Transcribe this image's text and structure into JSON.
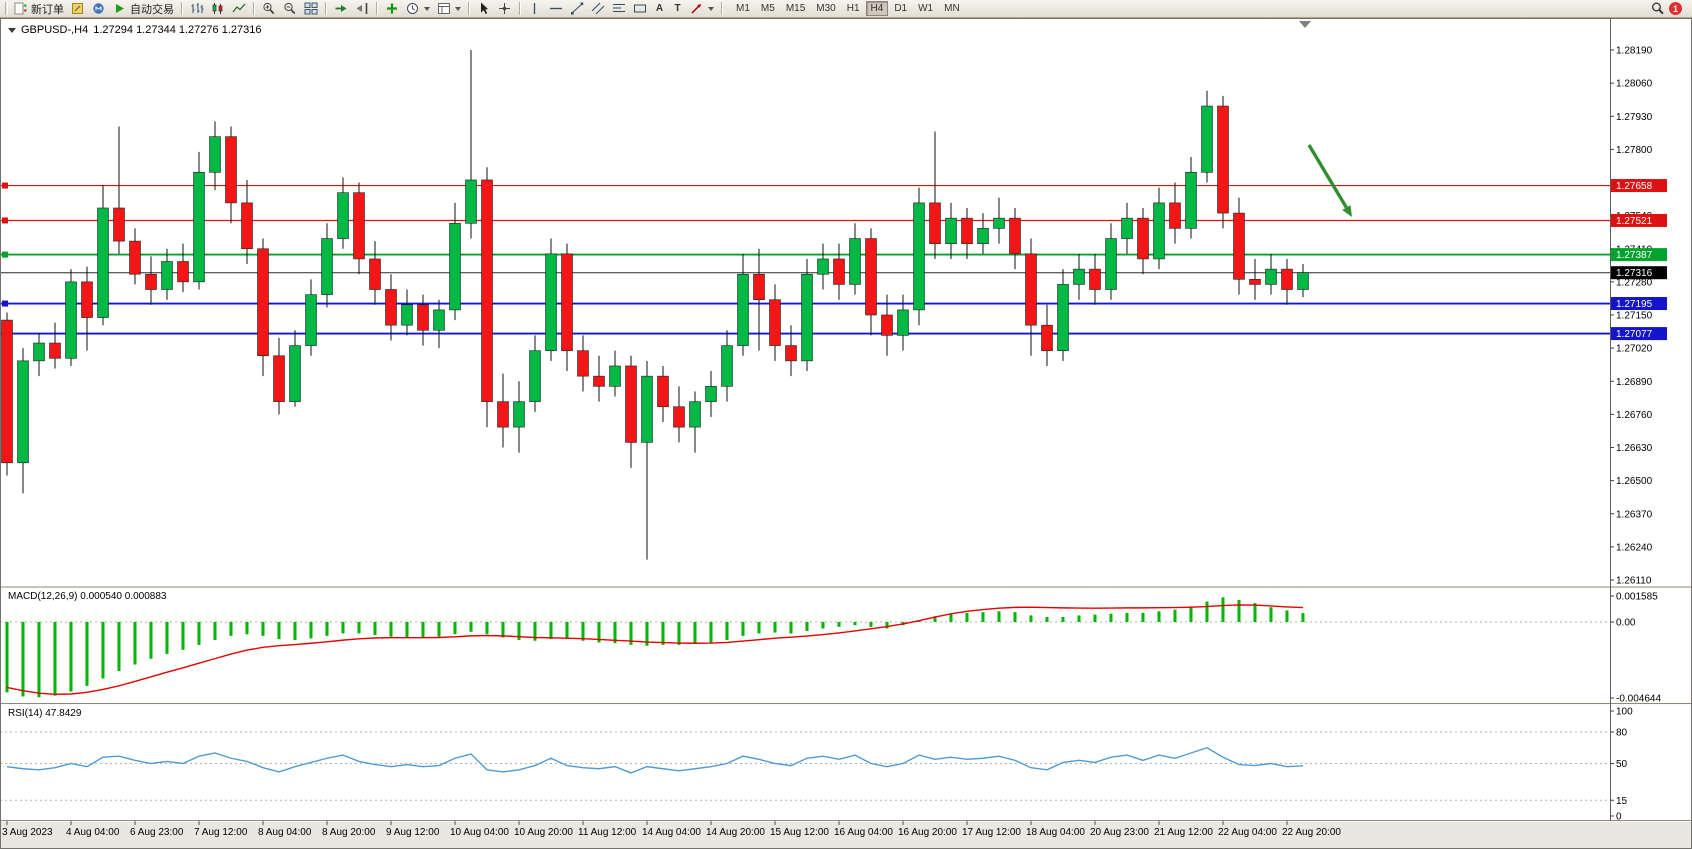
{
  "toolbar": {
    "new_order_label": "新订单",
    "autotrading_label": "自动交易",
    "timeframes": [
      "M1",
      "M5",
      "M15",
      "M30",
      "H1",
      "H4",
      "D1",
      "W1",
      "MN"
    ],
    "active_timeframe": "H4",
    "glyphs": {
      "text_tool": "A",
      "label_tool": "T"
    },
    "notification_count": "1"
  },
  "chart": {
    "symbol_period": "GBPUSD-,H4",
    "ohlc": "1.27294 1.27344 1.27276 1.27316"
  },
  "indicators": {
    "macd_label": "MACD(12,26,9) 0.000540 0.000883",
    "rsi_label": "RSI(14) 47.8429"
  },
  "colors": {
    "bull": "#00b846",
    "bear": "#f21616",
    "wick": "#111111",
    "macd_hist": "#00b400",
    "macd_signal": "#e80000",
    "rsi": "#4f9bd5",
    "hline_red": "#dd1111",
    "hline_green": "#00a32e",
    "hline_blue": "#1414cc",
    "current_line": "#2b2b2b",
    "arrow": "#2f8f2f"
  },
  "chart_data": {
    "type": "candlestick",
    "symbol": "GBPUSD-",
    "period": "H4",
    "price_axis": {
      "max": 1.2819,
      "min": 1.2611,
      "step": 0.0013,
      "labels": [
        "1.28190",
        "1.28060",
        "1.27930",
        "1.27800",
        "1.27670",
        "1.27540",
        "1.27410",
        "1.27280",
        "1.27150",
        "1.27020",
        "1.26890",
        "1.26760",
        "1.26630",
        "1.26500",
        "1.26370",
        "1.26240",
        "1.26110"
      ]
    },
    "current_price": 1.27316,
    "current_price_label": "1.27316",
    "hlines": [
      {
        "price": 1.27658,
        "label": "1.27658",
        "color": "#dd1111",
        "weight": 1.2
      },
      {
        "price": 1.27521,
        "label": "1.27521",
        "color": "#dd1111",
        "weight": 1.2
      },
      {
        "price": 1.27387,
        "label": "1.27387",
        "color": "#00a32e",
        "weight": 1.9
      },
      {
        "price": 1.27195,
        "label": "1.27195",
        "color": "#1414cc",
        "weight": 1.9
      },
      {
        "price": 1.27077,
        "label": "1.27077",
        "color": "#1414cc",
        "weight": 1.9
      }
    ],
    "candles": [
      [
        1.2713,
        1.2716,
        1.2652,
        1.2657
      ],
      [
        1.2657,
        1.2702,
        1.2645,
        1.2697
      ],
      [
        1.2697,
        1.2708,
        1.2691,
        1.2704
      ],
      [
        1.2704,
        1.2712,
        1.2694,
        1.2698
      ],
      [
        1.2698,
        1.2733,
        1.2695,
        1.2728
      ],
      [
        1.2728,
        1.2734,
        1.2701,
        1.2714
      ],
      [
        1.2714,
        1.2766,
        1.2711,
        1.2757
      ],
      [
        1.2757,
        1.2789,
        1.2739,
        1.2744
      ],
      [
        1.2744,
        1.2749,
        1.2727,
        1.2731
      ],
      [
        1.2731,
        1.2738,
        1.2719,
        1.2725
      ],
      [
        1.2725,
        1.2741,
        1.2721,
        1.2736
      ],
      [
        1.2736,
        1.2743,
        1.2724,
        1.2728
      ],
      [
        1.2728,
        1.2779,
        1.2725,
        1.2771
      ],
      [
        1.2771,
        1.2791,
        1.2764,
        1.2785
      ],
      [
        1.2785,
        1.2789,
        1.2751,
        1.2759
      ],
      [
        1.2759,
        1.2768,
        1.2735,
        1.2741
      ],
      [
        1.2741,
        1.2745,
        1.2691,
        1.2699
      ],
      [
        1.2699,
        1.2706,
        1.2676,
        1.2681
      ],
      [
        1.2681,
        1.2709,
        1.2679,
        1.2703
      ],
      [
        1.2703,
        1.2729,
        1.2699,
        1.2723
      ],
      [
        1.2723,
        1.2751,
        1.2718,
        1.2745
      ],
      [
        1.2745,
        1.2769,
        1.2741,
        1.2763
      ],
      [
        1.2763,
        1.2767,
        1.2731,
        1.2737
      ],
      [
        1.2737,
        1.2744,
        1.2719,
        1.2725
      ],
      [
        1.2725,
        1.2731,
        1.2705,
        1.2711
      ],
      [
        1.2711,
        1.2725,
        1.2707,
        1.2719
      ],
      [
        1.2719,
        1.2723,
        1.2703,
        1.2709
      ],
      [
        1.2709,
        1.2721,
        1.2702,
        1.2717
      ],
      [
        1.2717,
        1.2759,
        1.2713,
        1.2751
      ],
      [
        1.2751,
        1.2819,
        1.2745,
        1.2768
      ],
      [
        1.2768,
        1.2773,
        1.2671,
        1.2681
      ],
      [
        1.2681,
        1.2692,
        1.2663,
        1.2671
      ],
      [
        1.2671,
        1.2689,
        1.2661,
        1.2681
      ],
      [
        1.2681,
        1.2707,
        1.2677,
        1.2701
      ],
      [
        1.2701,
        1.2745,
        1.2697,
        1.2739
      ],
      [
        1.2739,
        1.2743,
        1.2693,
        1.2701
      ],
      [
        1.2701,
        1.2707,
        1.2685,
        1.2691
      ],
      [
        1.2691,
        1.2699,
        1.2681,
        1.2687
      ],
      [
        1.2687,
        1.2701,
        1.2683,
        1.2695
      ],
      [
        1.2695,
        1.2699,
        1.2655,
        1.2665
      ],
      [
        1.2665,
        1.2697,
        1.2619,
        1.2691
      ],
      [
        1.2691,
        1.2695,
        1.2673,
        1.2679
      ],
      [
        1.2679,
        1.2687,
        1.2665,
        1.2671
      ],
      [
        1.2671,
        1.2685,
        1.2661,
        1.2681
      ],
      [
        1.2681,
        1.2693,
        1.2675,
        1.2687
      ],
      [
        1.2687,
        1.2709,
        1.2681,
        1.2703
      ],
      [
        1.2703,
        1.2739,
        1.2699,
        1.2731
      ],
      [
        1.2731,
        1.2741,
        1.2701,
        1.2721
      ],
      [
        1.2721,
        1.2727,
        1.2697,
        1.2703
      ],
      [
        1.2703,
        1.2711,
        1.2691,
        1.2697
      ],
      [
        1.2697,
        1.2737,
        1.2693,
        1.2731
      ],
      [
        1.2731,
        1.2743,
        1.2725,
        1.2737
      ],
      [
        1.2737,
        1.2743,
        1.2721,
        1.2727
      ],
      [
        1.2727,
        1.2751,
        1.2723,
        1.2745
      ],
      [
        1.2745,
        1.2749,
        1.2707,
        1.2715
      ],
      [
        1.2715,
        1.2723,
        1.2699,
        1.2707
      ],
      [
        1.2707,
        1.2723,
        1.2701,
        1.2717
      ],
      [
        1.2717,
        1.2765,
        1.2711,
        1.2759
      ],
      [
        1.2759,
        1.2787,
        1.2737,
        1.2743
      ],
      [
        1.2743,
        1.2759,
        1.2737,
        1.2753
      ],
      [
        1.2753,
        1.2757,
        1.2737,
        1.2743
      ],
      [
        1.2743,
        1.2755,
        1.2739,
        1.2749
      ],
      [
        1.2749,
        1.2761,
        1.2743,
        1.2753
      ],
      [
        1.2753,
        1.2757,
        1.2733,
        1.2739
      ],
      [
        1.2739,
        1.2745,
        1.2699,
        1.2711
      ],
      [
        1.2711,
        1.2719,
        1.2695,
        1.2701
      ],
      [
        1.2701,
        1.2733,
        1.2697,
        1.2727
      ],
      [
        1.2727,
        1.2739,
        1.2721,
        1.2733
      ],
      [
        1.2733,
        1.2739,
        1.2719,
        1.2725
      ],
      [
        1.2725,
        1.2751,
        1.2721,
        1.2745
      ],
      [
        1.2745,
        1.2759,
        1.2739,
        1.2753
      ],
      [
        1.2753,
        1.2757,
        1.2731,
        1.2737
      ],
      [
        1.2737,
        1.2765,
        1.2733,
        1.2759
      ],
      [
        1.2759,
        1.2767,
        1.2743,
        1.2749
      ],
      [
        1.2749,
        1.2777,
        1.2745,
        1.2771
      ],
      [
        1.2771,
        1.2803,
        1.2767,
        1.2797
      ],
      [
        1.2797,
        1.2801,
        1.2749,
        1.2755
      ],
      [
        1.2755,
        1.2761,
        1.2723,
        1.2729
      ],
      [
        1.2729,
        1.2737,
        1.2721,
        1.2727
      ],
      [
        1.2727,
        1.2739,
        1.2723,
        1.2733
      ],
      [
        1.2733,
        1.2737,
        1.2719,
        1.2725
      ],
      [
        1.2725,
        1.2735,
        1.2722,
        1.27316
      ]
    ],
    "time_labels": [
      "3 Aug 2023",
      "4 Aug 04:00",
      "6 Aug 23:00",
      "7 Aug 12:00",
      "8 Aug 04:00",
      "8 Aug 20:00",
      "9 Aug 12:00",
      "10 Aug 04:00",
      "10 Aug 20:00",
      "11 Aug 12:00",
      "14 Aug 04:00",
      "14 Aug 20:00",
      "15 Aug 12:00",
      "16 Aug 04:00",
      "16 Aug 20:00",
      "17 Aug 12:00",
      "18 Aug 04:00",
      "20 Aug 23:00",
      "21 Aug 12:00",
      "22 Aug 04:00",
      "22 Aug 20:00"
    ],
    "ticks_every": 4,
    "macd": {
      "label": "MACD(12,26,9) 0.000540 0.000883",
      "axis_labels": [
        "0.001585",
        "0.00",
        "-0.004644"
      ],
      "max": 0.001585,
      "min": -0.004644,
      "histogram": [
        -0.0043,
        -0.00455,
        -0.0046,
        -0.0045,
        -0.00425,
        -0.0039,
        -0.00345,
        -0.003,
        -0.0026,
        -0.00225,
        -0.00195,
        -0.0017,
        -0.0014,
        -0.0011,
        -0.00085,
        -0.00075,
        -0.00085,
        -0.00105,
        -0.0011,
        -0.001,
        -0.00085,
        -0.0007,
        -0.0007,
        -0.0008,
        -0.0009,
        -0.00095,
        -0.00095,
        -0.0009,
        -0.00075,
        -0.0006,
        -0.00075,
        -0.00095,
        -0.0011,
        -0.00115,
        -0.00105,
        -0.00105,
        -0.00115,
        -0.00125,
        -0.0013,
        -0.0014,
        -0.00145,
        -0.0014,
        -0.0014,
        -0.00135,
        -0.00125,
        -0.0011,
        -0.00085,
        -0.0007,
        -0.00065,
        -0.0007,
        -0.00055,
        -0.0004,
        -0.0003,
        -0.0002,
        -0.0003,
        -0.0004,
        -0.0002,
        0.0001,
        0.00035,
        0.0005,
        0.00055,
        0.0006,
        0.00065,
        0.0006,
        0.0004,
        0.0003,
        0.0003,
        0.0004,
        0.00045,
        0.0005,
        0.00055,
        0.00055,
        0.00065,
        0.00075,
        0.00095,
        0.00125,
        0.0015,
        0.00135,
        0.00115,
        0.0009,
        0.0007,
        0.00054
      ],
      "signal": [
        -0.004,
        -0.0042,
        -0.00435,
        -0.00442,
        -0.0044,
        -0.0043,
        -0.00412,
        -0.0039,
        -0.00363,
        -0.00335,
        -0.00307,
        -0.0028,
        -0.00252,
        -0.00224,
        -0.00196,
        -0.00172,
        -0.00155,
        -0.00145,
        -0.00138,
        -0.0013,
        -0.00121,
        -0.00111,
        -0.00103,
        -0.00098,
        -0.00096,
        -0.00096,
        -0.00096,
        -0.00095,
        -0.00091,
        -0.00085,
        -0.00083,
        -0.00085,
        -0.0009,
        -0.00095,
        -0.00097,
        -0.00099,
        -0.00102,
        -0.00107,
        -0.00112,
        -0.00117,
        -0.00123,
        -0.00126,
        -0.00129,
        -0.0013,
        -0.00129,
        -0.00125,
        -0.00117,
        -0.00108,
        -0.00099,
        -0.00093,
        -0.00086,
        -0.00077,
        -0.00067,
        -0.00055,
        -0.00042,
        -0.00028,
        -0.00012,
        8e-05,
        0.0003,
        0.0005,
        0.00065,
        0.00076,
        0.00084,
        0.00089,
        0.0009,
        0.00088,
        0.00086,
        0.00085,
        0.00084,
        0.00085,
        0.00086,
        0.00086,
        0.00087,
        0.00088,
        0.0009,
        0.00094,
        0.001,
        0.00104,
        0.00103,
        0.00098,
        0.00092,
        0.00088
      ]
    },
    "rsi": {
      "label": "RSI(14) 47.8429",
      "axis_labels": [
        "100",
        "80",
        "50",
        "15",
        "0"
      ],
      "levels": [
        80,
        50,
        15
      ],
      "values": [
        47,
        45,
        44,
        46,
        50,
        47,
        56,
        57,
        53,
        50,
        52,
        50,
        57,
        60,
        55,
        52,
        46,
        42,
        47,
        51,
        55,
        58,
        52,
        49,
        47,
        49,
        47,
        48,
        55,
        59,
        44,
        42,
        44,
        48,
        55,
        48,
        46,
        45,
        47,
        41,
        47,
        45,
        43,
        45,
        47,
        50,
        57,
        54,
        50,
        48,
        55,
        57,
        54,
        58,
        50,
        47,
        50,
        58,
        54,
        56,
        54,
        55,
        57,
        53,
        46,
        44,
        51,
        53,
        51,
        56,
        58,
        53,
        58,
        55,
        60,
        65,
        56,
        49,
        48,
        50,
        47,
        47.84
      ]
    },
    "annotation_arrow": {
      "from": [
        1309,
        145
      ],
      "to": [
        1352,
        217
      ],
      "color": "#2f8f2f"
    }
  }
}
